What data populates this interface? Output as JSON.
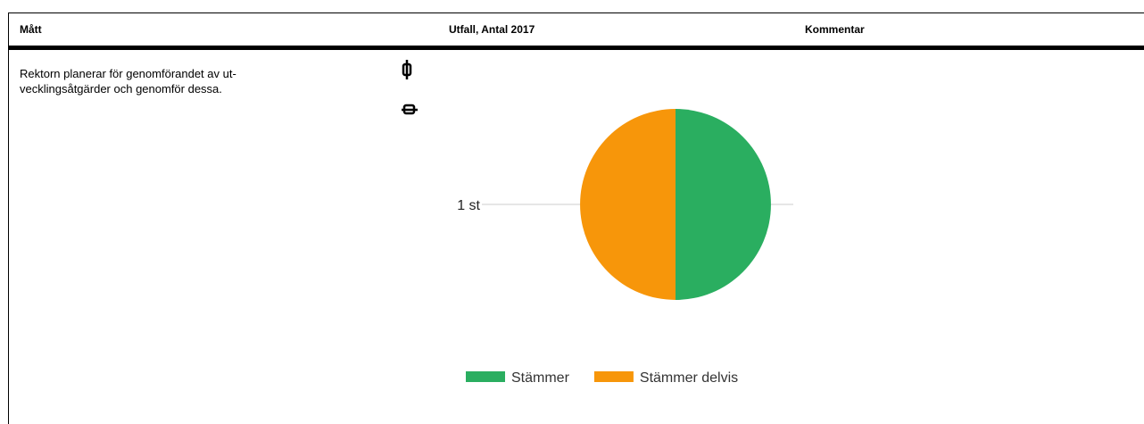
{
  "table": {
    "headers": [
      "Mått",
      "Utfall, Antal 2017",
      "Kommentar"
    ],
    "rows": [
      [
        "Rektorn planerar för genomförandet av ut-vecklingsåtgärder och genomför dessa."
      ]
    ]
  },
  "chart_data": {
    "type": "pie",
    "categories": [
      "Stämmer",
      "Stämmer delvis"
    ],
    "values": [
      1,
      1
    ],
    "value_labels": [
      "1 st",
      "1 st"
    ],
    "colors": [
      "#2aae60",
      "#f7960a"
    ],
    "legend": "bottom"
  }
}
